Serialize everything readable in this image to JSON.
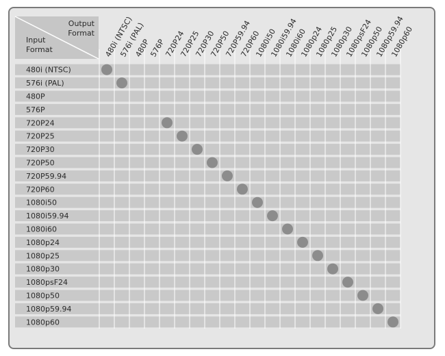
{
  "corner": {
    "output_line1": "Output",
    "output_line2": "Format",
    "input_line1": "Input",
    "input_line2": "Format"
  },
  "output_formats": [
    "480i (NTSC)",
    "576i (PAL)",
    "480P",
    "576P",
    "720P24",
    "720P25",
    "720P30",
    "720P50",
    "720P59.94",
    "720P60",
    "1080i50",
    "1080i59.94",
    "1080i60",
    "1080p24",
    "1080p25",
    "1080p30",
    "1080psF24",
    "1080p50",
    "1080p59.94",
    "1080p60"
  ],
  "input_formats": [
    "480i (NTSC)",
    "576i (PAL)",
    "480P",
    "576P",
    "720P24",
    "720P25",
    "720P30",
    "720P50",
    "720P59.94",
    "720P60",
    "1080i50",
    "1080i59.94",
    "1080i60",
    "1080p24",
    "1080p25",
    "1080p30",
    "1080psF24",
    "1080p50",
    "1080p59.94",
    "1080p60"
  ],
  "supported": [
    [
      0,
      0
    ],
    [
      1,
      1
    ],
    [
      4,
      4
    ],
    [
      5,
      5
    ],
    [
      6,
      6
    ],
    [
      7,
      7
    ],
    [
      8,
      8
    ],
    [
      9,
      9
    ],
    [
      10,
      10
    ],
    [
      11,
      11
    ],
    [
      12,
      12
    ],
    [
      13,
      13
    ],
    [
      14,
      14
    ],
    [
      15,
      15
    ],
    [
      16,
      16
    ],
    [
      17,
      17
    ],
    [
      18,
      18
    ],
    [
      19,
      19
    ]
  ],
  "colors": {
    "dot": "#8c8c8c",
    "row_band": "#c9c9c9",
    "grid_line": "#ffffff",
    "corner_bg": "#c6c6c6"
  }
}
